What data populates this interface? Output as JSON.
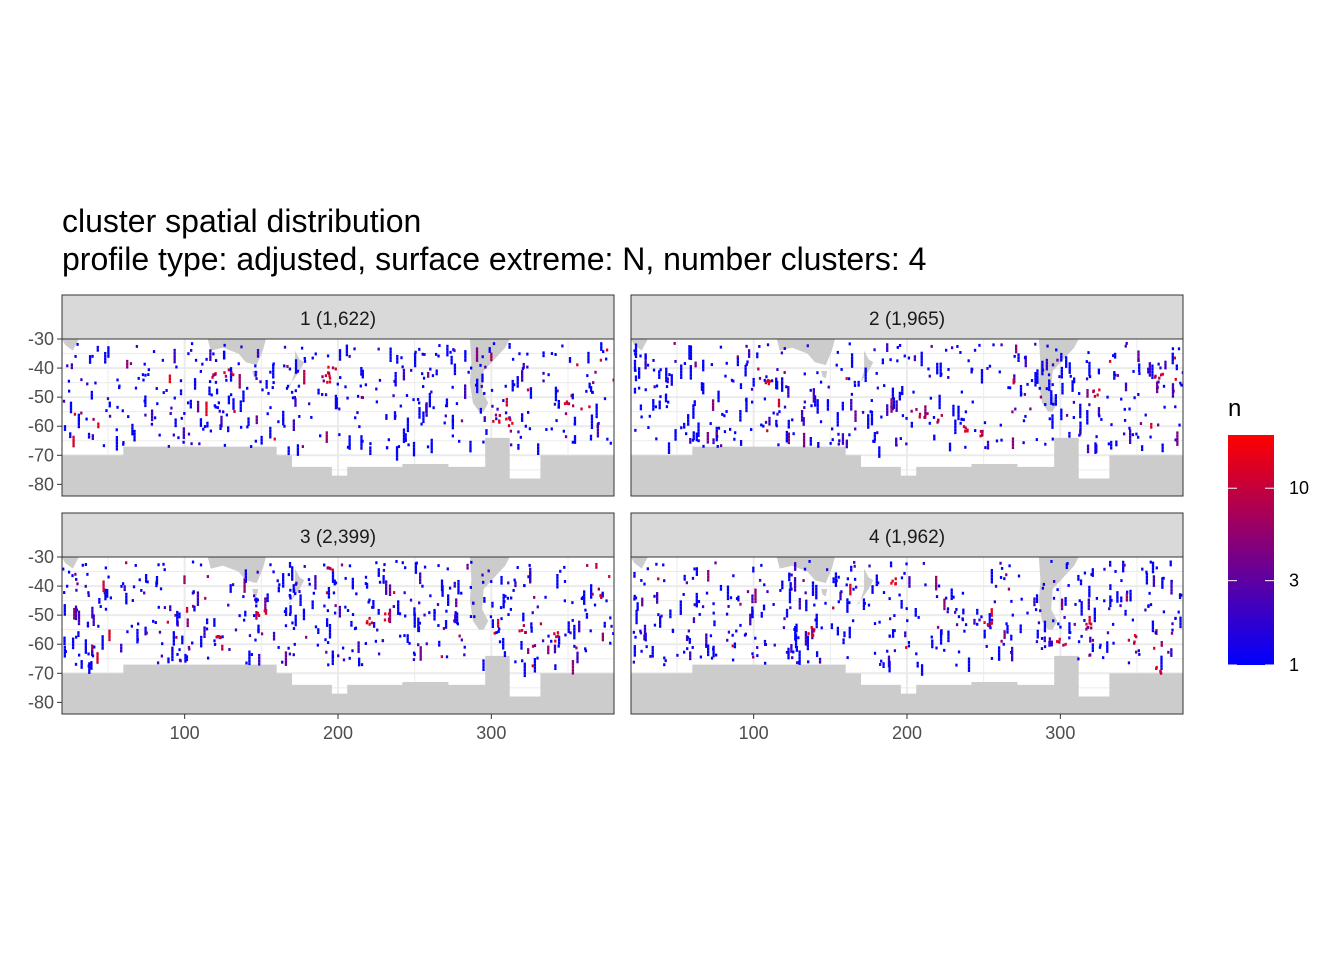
{
  "title": "cluster spatial distribution",
  "subtitle": "profile type: adjusted, surface extreme: N, number clusters: 4",
  "colors": {
    "low": "#0000ff",
    "high": "#ff0000",
    "land": "#cccccc",
    "ocean": "#ffffff",
    "grid": "#ebebeb",
    "strip": "#d9d9d9",
    "border": "#333333"
  },
  "chart_data": {
    "type": "heatmap",
    "facet_by": "cluster",
    "facets": [
      {
        "label": "1 (1,622)",
        "cluster": 1,
        "count": 1622
      },
      {
        "label": "2 (1,965)",
        "cluster": 2,
        "count": 1965
      },
      {
        "label": "3 (2,399)",
        "cluster": 3,
        "count": 2399
      },
      {
        "label": "4 (1,962)",
        "cluster": 4,
        "count": 1962
      }
    ],
    "x_ticks": [
      "100",
      "200",
      "300"
    ],
    "x_tick_values": [
      100,
      200,
      300
    ],
    "y_ticks": [
      "-30",
      "-40",
      "-50",
      "-60",
      "-70",
      "-80"
    ],
    "y_tick_values": [
      -30,
      -40,
      -50,
      -60,
      -70,
      -80
    ],
    "xlim": [
      20,
      380
    ],
    "ylim": [
      -84,
      -30
    ],
    "fill_scale": {
      "name": "n",
      "transform": "log10",
      "breaks": [
        1,
        3,
        10
      ],
      "labels": [
        "1",
        "3",
        "10"
      ],
      "limits": [
        1,
        20
      ]
    },
    "hotspots": [
      {
        "facet": 1,
        "points": [
          [
            117,
            -42
          ],
          [
            128,
            -41
          ],
          [
            192,
            -43
          ],
          [
            195,
            -40
          ],
          [
            302,
            -57
          ],
          [
            310,
            -58
          ],
          [
            350,
            -51
          ]
        ]
      },
      {
        "facet": 2,
        "points": [
          [
            110,
            -44
          ],
          [
            210,
            -55
          ],
          [
            222,
            -57
          ],
          [
            238,
            -60
          ],
          [
            250,
            -62
          ],
          [
            322,
            -48
          ],
          [
            364,
            -42
          ]
        ]
      },
      {
        "facet": 3,
        "points": [
          [
            120,
            -56
          ],
          [
            150,
            -49
          ],
          [
            195,
            -33
          ],
          [
            220,
            -52
          ],
          [
            230,
            -50
          ],
          [
            320,
            -54
          ],
          [
            340,
            -57
          ],
          [
            368,
            -42
          ]
        ]
      },
      {
        "facet": 4,
        "points": [
          [
            138,
            -55
          ],
          [
            190,
            -38
          ],
          [
            252,
            -52
          ],
          [
            300,
            -59
          ],
          [
            318,
            -54
          ],
          [
            346,
            -58
          ],
          [
            363,
            -68
          ]
        ]
      }
    ]
  }
}
